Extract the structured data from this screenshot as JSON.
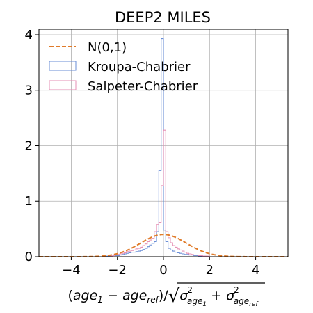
{
  "chart_data": {
    "type": "histogram",
    "title": "DEEP2 MILES",
    "xlabel_parts": {
      "open": "(",
      "age": "age",
      "sub1": "1",
      "minus": " − ",
      "age_ref": "age",
      "sub_ref": "ref",
      "slash": ")/",
      "sigma": "σ",
      "sq": "2",
      "sig_sub1": "age",
      "sig_sub1_idx": "1",
      "plus": " + ",
      "sig_sub_ref": "age",
      "sig_sub_ref_idx": "ref"
    },
    "ylabel": "",
    "xlim": [
      -5.4,
      5.4
    ],
    "ylim": [
      0,
      4.1
    ],
    "grid": true,
    "legend_position": "upper-left",
    "xticks": [
      -4,
      -2,
      0,
      2,
      4
    ],
    "xtick_labels": [
      "−4",
      "−2",
      "0",
      "2",
      "4"
    ],
    "yticks": [
      0,
      1,
      2,
      3,
      4
    ],
    "ytick_labels": [
      "0",
      "1",
      "2",
      "3",
      "4"
    ],
    "series": [
      {
        "name": "N(0,1)",
        "kind": "curve",
        "function": "standard normal pdf",
        "color": "#e07b2a",
        "style": "dashed"
      },
      {
        "name": "Kroupa-Chabrier",
        "kind": "step",
        "color": "#6a8ed6",
        "bin_width": 0.1,
        "bin_centers": [
          -2.55,
          -2.45,
          -2.35,
          -2.25,
          -2.15,
          -2.05,
          -1.95,
          -1.85,
          -1.75,
          -1.65,
          -1.55,
          -1.45,
          -1.35,
          -1.25,
          -1.15,
          -1.05,
          -0.95,
          -0.85,
          -0.75,
          -0.65,
          -0.55,
          -0.45,
          -0.35,
          -0.25,
          -0.15,
          -0.05,
          0.05,
          0.15,
          0.25,
          0.35,
          0.45,
          0.55,
          0.65,
          0.75,
          0.85,
          0.95,
          1.05,
          1.15,
          1.25,
          1.35,
          1.45,
          1.55,
          1.65,
          1.75,
          1.85,
          1.95,
          2.05
        ],
        "values": [
          0.0,
          0.01,
          0.01,
          0.01,
          0.02,
          0.02,
          0.02,
          0.03,
          0.04,
          0.05,
          0.06,
          0.07,
          0.08,
          0.08,
          0.09,
          0.1,
          0.11,
          0.13,
          0.15,
          0.18,
          0.21,
          0.24,
          0.27,
          0.45,
          1.55,
          3.93,
          0.48,
          0.27,
          0.15,
          0.12,
          0.1,
          0.08,
          0.07,
          0.06,
          0.05,
          0.04,
          0.04,
          0.03,
          0.03,
          0.02,
          0.02,
          0.01,
          0.01,
          0.01,
          0.01,
          0.0,
          0.0
        ]
      },
      {
        "name": "Salpeter-Chabrier",
        "kind": "step",
        "color": "#e58fb4",
        "bin_width": 0.1,
        "bin_centers": [
          -2.25,
          -2.15,
          -2.05,
          -1.95,
          -1.85,
          -1.75,
          -1.65,
          -1.55,
          -1.45,
          -1.35,
          -1.25,
          -1.15,
          -1.05,
          -0.95,
          -0.85,
          -0.75,
          -0.65,
          -0.55,
          -0.45,
          -0.35,
          -0.25,
          -0.15,
          -0.05,
          0.05,
          0.15,
          0.25,
          0.35,
          0.45,
          0.55,
          0.65,
          0.75,
          0.85,
          0.95,
          1.05,
          1.15,
          1.25,
          1.35,
          1.45,
          1.55,
          1.65,
          1.75,
          1.85,
          1.95
        ],
        "values": [
          0.01,
          0.02,
          0.03,
          0.04,
          0.05,
          0.06,
          0.07,
          0.09,
          0.1,
          0.11,
          0.12,
          0.14,
          0.15,
          0.17,
          0.2,
          0.23,
          0.27,
          0.3,
          0.33,
          0.45,
          0.58,
          0.62,
          1.28,
          2.28,
          0.45,
          0.34,
          0.25,
          0.2,
          0.17,
          0.14,
          0.12,
          0.1,
          0.08,
          0.06,
          0.05,
          0.04,
          0.03,
          0.03,
          0.02,
          0.02,
          0.01,
          0.01,
          0.01
        ]
      }
    ]
  }
}
